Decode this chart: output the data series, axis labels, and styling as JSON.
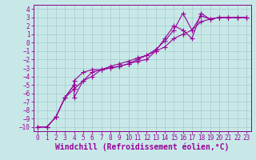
{
  "title": "",
  "xlabel": "Windchill (Refroidissement éolien,°C)",
  "ylabel": "",
  "bg_color": "#c8e8e8",
  "grid_color": "#a8d0d0",
  "line_color": "#990099",
  "spine_color": "#880088",
  "xlim": [
    -0.5,
    23.5
  ],
  "ylim": [
    -10.5,
    4.5
  ],
  "xticks": [
    0,
    1,
    2,
    3,
    4,
    5,
    6,
    7,
    8,
    9,
    10,
    11,
    12,
    13,
    14,
    15,
    16,
    17,
    18,
    19,
    20,
    21,
    22,
    23
  ],
  "yticks": [
    4,
    3,
    2,
    1,
    0,
    -1,
    -2,
    -3,
    -4,
    -5,
    -6,
    -7,
    -8,
    -9,
    -10
  ],
  "x_vals": [
    0,
    1,
    2,
    3,
    4,
    4,
    5,
    6,
    7,
    8,
    9,
    10,
    11,
    12,
    13,
    14,
    15,
    16,
    17,
    18,
    19,
    20,
    21,
    22,
    23
  ],
  "series1": [
    -10,
    -10,
    -8.8,
    -6.5,
    -5.0,
    -6.5,
    -4.5,
    -4.0,
    -3.2,
    -2.8,
    -2.5,
    -2.2,
    -1.8,
    -1.5,
    -1.0,
    -0.5,
    0.5,
    1.0,
    1.5,
    2.5,
    2.8,
    3.0,
    3.0,
    3.0,
    3.0
  ],
  "series2": [
    -10,
    -10,
    -8.8,
    -6.5,
    -5.0,
    -4.5,
    -3.5,
    -3.2,
    -3.2,
    -3.0,
    -2.8,
    -2.5,
    -2.2,
    -2.0,
    -1.0,
    0.5,
    2.0,
    1.5,
    0.5,
    3.5,
    2.8,
    3.0,
    3.0,
    3.0,
    3.0
  ],
  "series3": [
    -10,
    -10,
    -8.8,
    -6.5,
    -5.5,
    -5.5,
    -4.5,
    -3.5,
    -3.2,
    -3.0,
    -2.8,
    -2.5,
    -2.0,
    -1.5,
    -0.8,
    0.2,
    1.5,
    3.5,
    1.5,
    3.2,
    2.8,
    3.0,
    3.0,
    3.0,
    3.0
  ],
  "marker": "+",
  "markersize": 4.0,
  "linewidth": 0.8,
  "tick_fontsize": 5.5,
  "xlabel_fontsize": 7.0
}
